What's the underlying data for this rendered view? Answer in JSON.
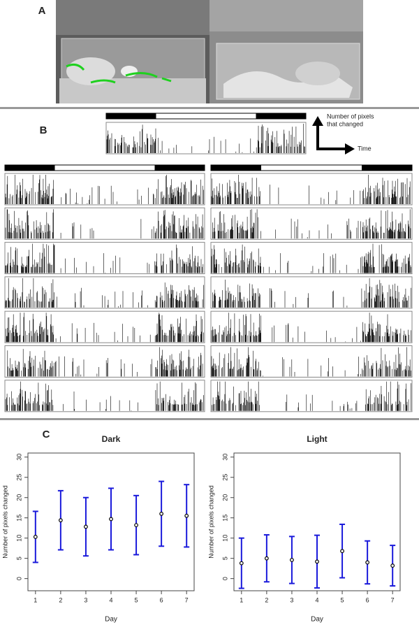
{
  "panels": {
    "a": "A",
    "b": "B",
    "c": "C"
  },
  "axis_key": {
    "y_label": [
      "Number of pixels",
      "that changed"
    ],
    "x_label": "Time"
  },
  "chart_data": [
    {
      "type": "errorbar",
      "title": "Dark",
      "x_label": "Day",
      "y_label": "Number of pixels changed",
      "x": [
        1,
        2,
        3,
        4,
        5,
        6,
        7
      ],
      "values": [
        10.3,
        14.4,
        12.8,
        14.7,
        13.2,
        16,
        15.5
      ],
      "errors": [
        6.3,
        7.3,
        7.2,
        7.6,
        7.3,
        8,
        7.7
      ],
      "color": "#1a1adb",
      "xlim": [
        0.7,
        7.3
      ],
      "xticks": [
        1,
        2,
        3,
        4,
        5,
        6,
        7
      ],
      "ylim": [
        -3,
        31
      ],
      "yticks": [
        0,
        5,
        10,
        15,
        20,
        25,
        30
      ]
    },
    {
      "type": "errorbar",
      "title": "Light",
      "x_label": "Day",
      "y_label": "Number of pixels changed",
      "x": [
        1,
        2,
        3,
        4,
        5,
        6,
        7
      ],
      "values": [
        3.8,
        5,
        4.6,
        4.2,
        6.8,
        4,
        3.2
      ],
      "errors": [
        6.2,
        5.8,
        5.8,
        6.5,
        6.6,
        5.3,
        5
      ],
      "color": "#1a1adb",
      "xlim": [
        0.7,
        7.3
      ],
      "xticks": [
        1,
        2,
        3,
        4,
        5,
        6,
        7
      ],
      "ylim": [
        -3,
        31
      ],
      "yticks": [
        0,
        5,
        10,
        15,
        20,
        25,
        30
      ]
    }
  ]
}
